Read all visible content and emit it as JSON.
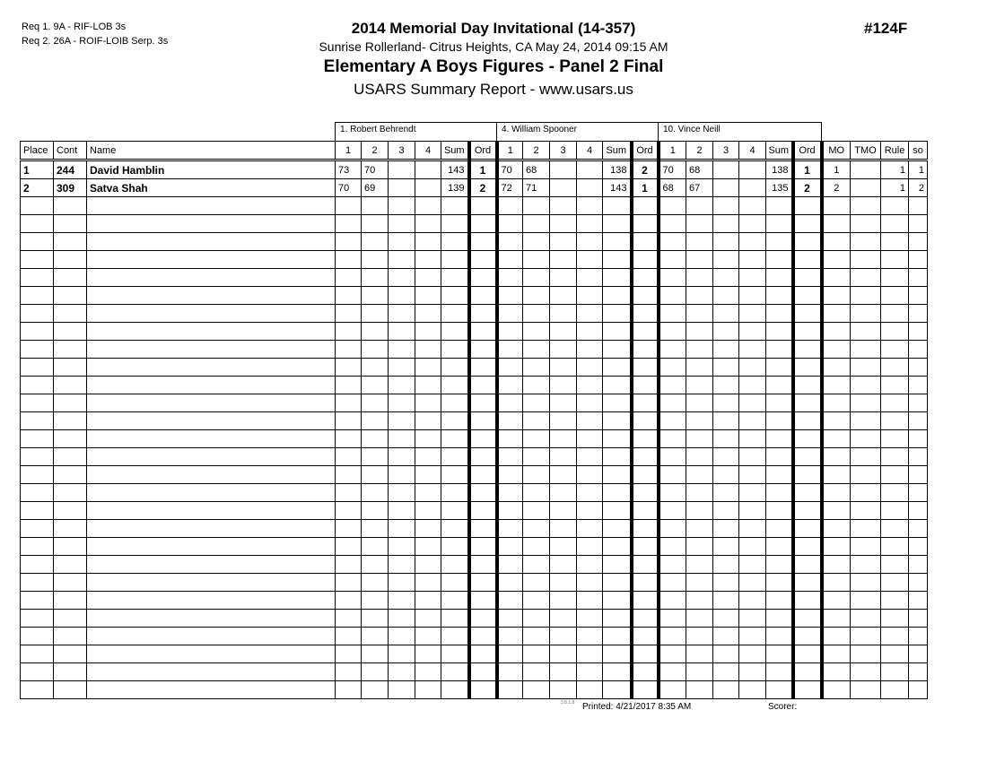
{
  "requirements": [
    "Req  1.  9A - RIF-LOB 3s",
    "Req  2.  26A - ROIF-LOIB Serp. 3s"
  ],
  "header": {
    "event": "2014  Memorial Day Invitational (14-357)",
    "venue": "Sunrise Rollerland- Citrus Heights, CA  May 24, 2014  09:15 AM",
    "category": "Elementary A Boys Figures - Panel 2 Final",
    "report": "USARS Summary Report - www.usars.us",
    "event_number": "#124F"
  },
  "judges": [
    "1.  Robert Behrendt",
    "4.  William Spooner",
    "10.  Vince Neill"
  ],
  "columns": {
    "place": "Place",
    "cont": "Cont",
    "name": "Name",
    "judge_cols": [
      "1",
      "2",
      "3",
      "4",
      "Sum",
      "Ord"
    ],
    "mo": "MO",
    "tmo": "TMO",
    "rule": "Rule",
    "so": "so"
  },
  "rows": [
    {
      "place": "1",
      "cont": "244",
      "name": "David Hamblin",
      "judges": [
        [
          "73",
          "70",
          "",
          "",
          "143",
          "1"
        ],
        [
          "70",
          "68",
          "",
          "",
          "138",
          "2"
        ],
        [
          "70",
          "68",
          "",
          "",
          "138",
          "1"
        ]
      ],
      "mo": "1",
      "tmo": "",
      "rule": "1",
      "so": "1"
    },
    {
      "place": "2",
      "cont": "309",
      "name": "Satva Shah",
      "judges": [
        [
          "70",
          "69",
          "",
          "",
          "139",
          "2"
        ],
        [
          "72",
          "71",
          "",
          "",
          "143",
          "1"
        ],
        [
          "68",
          "67",
          "",
          "",
          "135",
          "2"
        ]
      ],
      "mo": "2",
      "tmo": "",
      "rule": "1",
      "so": "2"
    }
  ],
  "footer": {
    "version": "3.8.1.8",
    "printed": "Printed:  4/21/2017  8:35 AM",
    "scorer": "Scorer:"
  }
}
